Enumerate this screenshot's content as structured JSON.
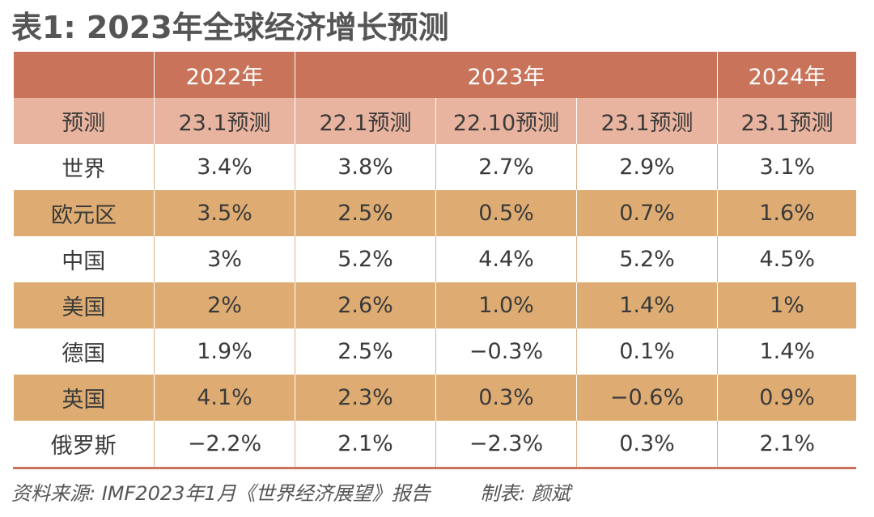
{
  "title": "表1: 2023年全球经济增长预测",
  "header": {
    "year_2022": "2022年",
    "year_2023": "2023年",
    "year_2024": "2024年",
    "forecast_label": "预测",
    "forecasts": [
      "23.1预测",
      "22.1预测",
      "22.10预测",
      "23.1预测",
      "23.1预测"
    ]
  },
  "rows": [
    {
      "region": "世界",
      "values": [
        "3.4%",
        "3.8%",
        "2.7%",
        "2.9%",
        "3.1%"
      ]
    },
    {
      "region": "欧元区",
      "values": [
        "3.5%",
        "2.5%",
        "0.5%",
        "0.7%",
        "1.6%"
      ]
    },
    {
      "region": "中国",
      "values": [
        "3%",
        "5.2%",
        "4.4%",
        "5.2%",
        "4.5%"
      ]
    },
    {
      "region": "美国",
      "values": [
        "2%",
        "2.6%",
        "1.0%",
        "1.4%",
        "1%"
      ]
    },
    {
      "region": "德国",
      "values": [
        "1.9%",
        "2.5%",
        "−0.3%",
        "0.1%",
        "1.4%"
      ]
    },
    {
      "region": "英国",
      "values": [
        "4.1%",
        "2.3%",
        "0.3%",
        "−0.6%",
        "0.9%"
      ]
    },
    {
      "region": "俄罗斯",
      "values": [
        "−2.2%",
        "2.1%",
        "−2.3%",
        "0.3%",
        "2.1%"
      ]
    }
  ],
  "footer": {
    "source": "资料来源: IMF2023年1月《世界经济展望》报告",
    "credit": "制表: 颜斌"
  },
  "colors": {
    "header_dark": "#c9745a",
    "header_light": "#e8b4a0",
    "row_shaded": "#deac72",
    "text": "#3a3a3a"
  }
}
